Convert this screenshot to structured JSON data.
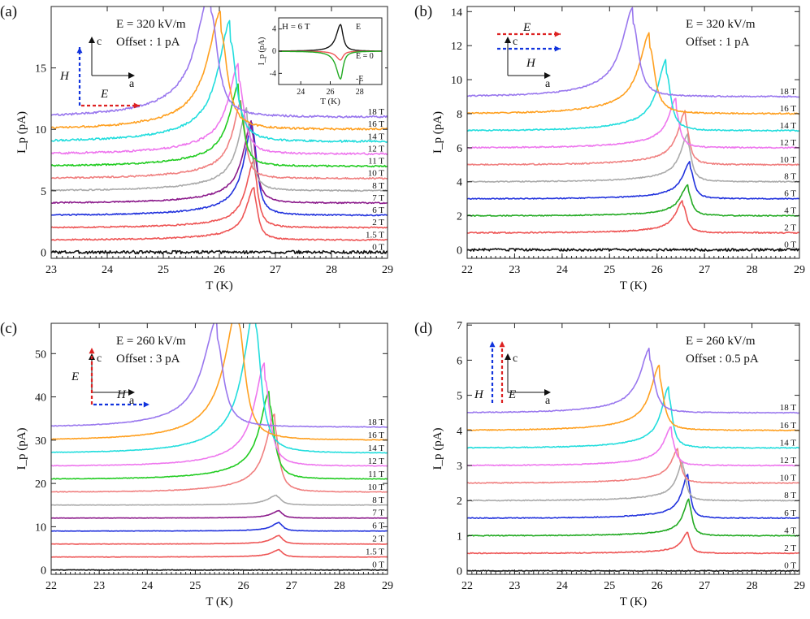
{
  "figure": {
    "colors": {
      "0 T": "#111111",
      "1.5 T": "#ee5555",
      "2 T": "#ee5555",
      "4 T": "#22aa22",
      "6 T": "#2233dd",
      "7 T": "#8b1a8b",
      "8 T": "#aaaaaa",
      "10 T": "#f08080",
      "11 T": "#22cc22",
      "12 T": "#ee77ee",
      "14 T": "#22dddd",
      "16 T": "#ffa020",
      "18 T": "#9977ee",
      "H_arrow": "#1133dd",
      "E_arrow": "#dd2222"
    }
  },
  "chart_data": [
    {
      "panel": "(a)",
      "type": "line",
      "xlabel": "T (K)",
      "ylabel": "I_p (pA)",
      "xlim": [
        23,
        29
      ],
      "ylim": [
        -0.5,
        20
      ],
      "xticks": [
        23,
        24,
        25,
        26,
        27,
        28,
        29
      ],
      "yticks": [
        0,
        5,
        10,
        15
      ],
      "annotation": [
        "E = 320 kV/m",
        "Offset : 1 pA"
      ],
      "axes_label": {
        "up": "c",
        "right": "a"
      },
      "arrows": {
        "vertical": "H",
        "horizontal": "E"
      },
      "series": [
        {
          "name": "0 T",
          "offset": 0,
          "peak_T": 26.6,
          "peak_height": 0,
          "width": 0.12,
          "rise": 0,
          "noise": 0.25
        },
        {
          "name": "1.5 T",
          "offset": 1,
          "peak_T": 26.62,
          "peak_height": 3.7,
          "width": 0.09,
          "rise": 0.6,
          "noise": 0.1
        },
        {
          "name": "2 T",
          "offset": 2,
          "peak_T": 26.62,
          "peak_height": 4.8,
          "width": 0.09,
          "rise": 0.7,
          "noise": 0.1
        },
        {
          "name": "6 T",
          "offset": 3,
          "peak_T": 26.6,
          "peak_height": 6.7,
          "width": 0.1,
          "rise": 0.9,
          "noise": 0.1
        },
        {
          "name": "7 T",
          "offset": 4,
          "peak_T": 26.58,
          "peak_height": 5.8,
          "width": 0.1,
          "rise": 0.9,
          "noise": 0.1
        },
        {
          "name": "8 T",
          "offset": 5,
          "peak_T": 26.5,
          "peak_height": 5.7,
          "width": 0.1,
          "rise": 1.1,
          "noise": 0.1
        },
        {
          "name": "10 T",
          "offset": 6,
          "peak_T": 26.4,
          "peak_height": 5.2,
          "width": 0.1,
          "rise": 1.2,
          "noise": 0.12
        },
        {
          "name": "11 T",
          "offset": 7,
          "peak_T": 26.35,
          "peak_height": 5.4,
          "width": 0.11,
          "rise": 1.3,
          "noise": 0.12
        },
        {
          "name": "12 T",
          "offset": 8,
          "peak_T": 26.35,
          "peak_height": 6.0,
          "width": 0.12,
          "rise": 1.4,
          "noise": 0.15
        },
        {
          "name": "14 T",
          "offset": 9,
          "peak_T": 26.2,
          "peak_height": 8.2,
          "width": 0.14,
          "rise": 1.7,
          "noise": 0.15
        },
        {
          "name": "16 T",
          "offset": 10,
          "peak_T": 26.03,
          "peak_height": 7.9,
          "width": 0.15,
          "rise": 1.8,
          "noise": 0.15
        },
        {
          "name": "18 T",
          "offset": 11,
          "peak_T": 25.85,
          "peak_height": 8.6,
          "width": 0.16,
          "rise": 2.0,
          "noise": 0.15
        }
      ],
      "inset": {
        "title": "H = 6 T",
        "xlabel": "T (K)",
        "ylabel": "I_p (pA)",
        "xlim": [
          22.5,
          29.5
        ],
        "ylim": [
          -6,
          6
        ],
        "xticks": [
          24,
          26,
          28
        ],
        "yticks": [
          -4,
          0,
          4
        ],
        "series": [
          {
            "name": "E",
            "color": "#111111",
            "peak_T": 26.7,
            "peak_height": 4.8
          },
          {
            "name": "E = 0",
            "color": "#ee5555",
            "peak_T": 26.7,
            "peak_height": -1.6
          },
          {
            "name": "-E",
            "color": "#22aa22",
            "peak_T": 26.7,
            "peak_height": -5.0
          }
        ]
      }
    },
    {
      "panel": "(b)",
      "type": "line",
      "xlabel": "T (K)",
      "ylabel": "I_p (pA)",
      "xlim": [
        22,
        29
      ],
      "ylim": [
        -0.5,
        14.3
      ],
      "xticks": [
        22,
        23,
        24,
        25,
        26,
        27,
        28,
        29
      ],
      "yticks": [
        0,
        2,
        4,
        6,
        8,
        10,
        12,
        14
      ],
      "annotation": [
        "E = 320 kV/m",
        "Offset : 1 pA"
      ],
      "axes_label": {
        "up": "c",
        "right": "a"
      },
      "arrows": {
        "upper_horizontal": "E",
        "lower_horizontal": "H"
      },
      "series": [
        {
          "name": "0 T",
          "offset": 0,
          "peak_T": 26.6,
          "peak_height": 0,
          "width": 0.12,
          "rise": 0,
          "noise": 0.2
        },
        {
          "name": "2 T",
          "offset": 1,
          "peak_T": 26.55,
          "peak_height": 1.6,
          "width": 0.1,
          "rise": 0.3,
          "noise": 0.1
        },
        {
          "name": "4 T",
          "offset": 2,
          "peak_T": 26.65,
          "peak_height": 1.5,
          "width": 0.1,
          "rise": 0.3,
          "noise": 0.08
        },
        {
          "name": "6 T",
          "offset": 3,
          "peak_T": 26.7,
          "peak_height": 1.8,
          "width": 0.1,
          "rise": 0.4,
          "noise": 0.08
        },
        {
          "name": "8 T",
          "offset": 4,
          "peak_T": 26.65,
          "peak_height": 2.3,
          "width": 0.1,
          "rise": 0.5,
          "noise": 0.08
        },
        {
          "name": "10 T",
          "offset": 5,
          "peak_T": 26.6,
          "peak_height": 2.6,
          "width": 0.1,
          "rise": 0.6,
          "noise": 0.1
        },
        {
          "name": "12 T",
          "offset": 6,
          "peak_T": 26.4,
          "peak_height": 2.2,
          "width": 0.1,
          "rise": 0.7,
          "noise": 0.1
        },
        {
          "name": "14 T",
          "offset": 7,
          "peak_T": 26.2,
          "peak_height": 3.4,
          "width": 0.12,
          "rise": 0.8,
          "noise": 0.1
        },
        {
          "name": "16 T",
          "offset": 8,
          "peak_T": 25.85,
          "peak_height": 3.9,
          "width": 0.14,
          "rise": 0.9,
          "noise": 0.1
        },
        {
          "name": "18 T",
          "offset": 9,
          "peak_T": 25.5,
          "peak_height": 4.3,
          "width": 0.15,
          "rise": 1.0,
          "noise": 0.1
        }
      ]
    },
    {
      "panel": "(c)",
      "type": "line",
      "xlabel": "T (K)",
      "ylabel": "I_p (pA)",
      "xlim": [
        22,
        29
      ],
      "ylim": [
        -1,
        57
      ],
      "xticks": [
        22,
        23,
        24,
        25,
        26,
        27,
        28,
        29
      ],
      "yticks": [
        0,
        10,
        20,
        30,
        40,
        50
      ],
      "annotation": [
        "E = 260 kV/m",
        "Offset : 3 pA"
      ],
      "axes_label": {
        "up": "c",
        "right": "a"
      },
      "arrows": {
        "vertical": "E",
        "horizontal": "H"
      },
      "series": [
        {
          "name": "0 T",
          "offset": 0,
          "peak_T": 26.7,
          "peak_height": 0,
          "width": 0.1,
          "rise": 0,
          "noise": 0.05
        },
        {
          "name": "1.5 T",
          "offset": 3,
          "peak_T": 26.75,
          "peak_height": 1.5,
          "width": 0.1,
          "rise": 0.2,
          "noise": 0.03
        },
        {
          "name": "2 T",
          "offset": 6,
          "peak_T": 26.75,
          "peak_height": 1.8,
          "width": 0.1,
          "rise": 0.2,
          "noise": 0.03
        },
        {
          "name": "6 T",
          "offset": 9,
          "peak_T": 26.75,
          "peak_height": 1.8,
          "width": 0.1,
          "rise": 0.2,
          "noise": 0.03
        },
        {
          "name": "7 T",
          "offset": 12,
          "peak_T": 26.75,
          "peak_height": 1.5,
          "width": 0.1,
          "rise": 0.2,
          "noise": 0.03
        },
        {
          "name": "8 T",
          "offset": 15,
          "peak_T": 26.7,
          "peak_height": 2.0,
          "width": 0.12,
          "rise": 0.3,
          "noise": 0.03
        },
        {
          "name": "10 T",
          "offset": 18,
          "peak_T": 26.65,
          "peak_height": 15,
          "width": 0.12,
          "rise": 3.0,
          "noise": 0.05
        },
        {
          "name": "11 T",
          "offset": 21,
          "peak_T": 26.55,
          "peak_height": 17,
          "width": 0.13,
          "rise": 3.5,
          "noise": 0.05
        },
        {
          "name": "12 T",
          "offset": 24,
          "peak_T": 26.45,
          "peak_height": 20,
          "width": 0.14,
          "rise": 4.0,
          "noise": 0.05
        },
        {
          "name": "14 T",
          "offset": 27,
          "peak_T": 26.25,
          "peak_height": 29.5,
          "width": 0.16,
          "rise": 5.0,
          "noise": 0.05
        },
        {
          "name": "16 T",
          "offset": 30,
          "peak_T": 25.9,
          "peak_height": 27,
          "width": 0.18,
          "rise": 5.0,
          "noise": 0.05
        },
        {
          "name": "18 T",
          "offset": 33,
          "peak_T": 25.45,
          "peak_height": 20.5,
          "width": 0.18,
          "rise": 4.5,
          "noise": 0.05
        }
      ]
    },
    {
      "panel": "(d)",
      "type": "line",
      "xlabel": "T (K)",
      "ylabel": "I_p (pA)",
      "xlim": [
        22,
        29
      ],
      "ylim": [
        -0.1,
        7.05
      ],
      "xticks": [
        22,
        23,
        24,
        25,
        26,
        27,
        28,
        29
      ],
      "yticks": [
        0,
        1,
        2,
        3,
        4,
        5,
        6,
        7
      ],
      "annotation": [
        "E = 260 kV/m",
        "Offset : 0.5 pA"
      ],
      "axes_label": {
        "up": "c",
        "right": "a"
      },
      "arrows": {
        "vertical_left": "H",
        "vertical_right": "E"
      },
      "series": [
        {
          "name": "0 T",
          "offset": 0,
          "peak_T": 26.6,
          "peak_height": 0,
          "width": 0.1,
          "rise": 0,
          "noise": 0.06
        },
        {
          "name": "2 T",
          "offset": 0.5,
          "peak_T": 26.65,
          "peak_height": 0.5,
          "width": 0.08,
          "rise": 0.1,
          "noise": 0.07
        },
        {
          "name": "4 T",
          "offset": 1.0,
          "peak_T": 26.68,
          "peak_height": 0.9,
          "width": 0.08,
          "rise": 0.15,
          "noise": 0.07
        },
        {
          "name": "6 T",
          "offset": 1.5,
          "peak_T": 26.65,
          "peak_height": 1.05,
          "width": 0.08,
          "rise": 0.2,
          "noise": 0.07
        },
        {
          "name": "8 T",
          "offset": 2.0,
          "peak_T": 26.55,
          "peak_height": 0.95,
          "width": 0.08,
          "rise": 0.2,
          "noise": 0.07
        },
        {
          "name": "10 T",
          "offset": 2.5,
          "peak_T": 26.45,
          "peak_height": 0.75,
          "width": 0.09,
          "rise": 0.25,
          "noise": 0.07
        },
        {
          "name": "12 T",
          "offset": 3.0,
          "peak_T": 26.3,
          "peak_height": 0.85,
          "width": 0.1,
          "rise": 0.25,
          "noise": 0.07
        },
        {
          "name": "14 T",
          "offset": 3.5,
          "peak_T": 26.25,
          "peak_height": 1.45,
          "width": 0.1,
          "rise": 0.3,
          "noise": 0.07
        },
        {
          "name": "16 T",
          "offset": 4.0,
          "peak_T": 26.05,
          "peak_height": 1.5,
          "width": 0.12,
          "rise": 0.35,
          "noise": 0.07
        },
        {
          "name": "18 T",
          "offset": 4.5,
          "peak_T": 25.85,
          "peak_height": 1.5,
          "width": 0.13,
          "rise": 0.35,
          "noise": 0.07
        }
      ]
    }
  ]
}
